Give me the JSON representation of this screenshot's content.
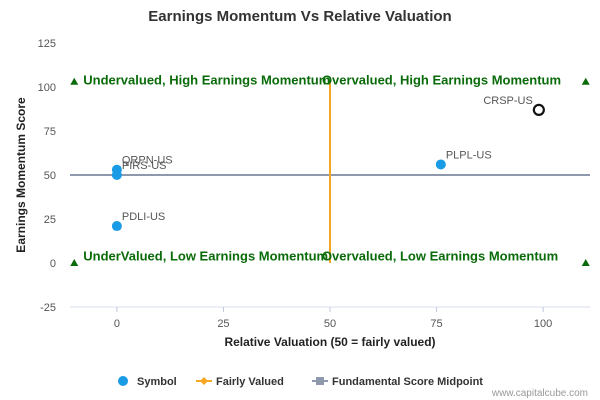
{
  "chart_data": {
    "type": "scatter",
    "title": "Earnings Momentum Vs Relative Valuation",
    "xlabel": "Relative Valuation (50 = fairly valued)",
    "ylabel": "Earnings Momentum Score",
    "xlim": [
      -11,
      111
    ],
    "ylim": [
      -25,
      125
    ],
    "x_ticks": [
      0,
      25,
      50,
      75,
      100
    ],
    "y_ticks": [
      -25,
      0,
      25,
      50,
      75,
      100,
      125
    ],
    "grid": false,
    "legend_position": "bottom",
    "points": [
      {
        "label": "QRPN-US",
        "x": 0,
        "y": 53,
        "highlight": false
      },
      {
        "label": "PIRS-US",
        "x": 0,
        "y": 50,
        "highlight": false
      },
      {
        "label": "PDLI-US",
        "x": 0,
        "y": 21,
        "highlight": false
      },
      {
        "label": "PLPL-US",
        "x": 76,
        "y": 56,
        "highlight": false
      },
      {
        "label": "CRSP-US",
        "x": 99,
        "y": 87,
        "highlight": true
      }
    ],
    "fairly_valued_x": 50,
    "fundamental_score_midpoint_y": 50,
    "quadrant_labels": [
      {
        "text": "Undervalued, High Earnings Momentum",
        "x": -10,
        "y": 103
      },
      {
        "text": "Overvalued, High Earnings Momentum",
        "x": 46,
        "y": 103
      },
      {
        "text": "UnderValued, Low Earnings Momentum",
        "x": -10,
        "y": 3
      },
      {
        "text": "Overvalued, Low Earnings Momentum",
        "x": 46,
        "y": 3
      }
    ],
    "corner_markers": [
      {
        "x": -10,
        "y": 103
      },
      {
        "x": 110,
        "y": 103
      },
      {
        "x": -10,
        "y": 0
      },
      {
        "x": 110,
        "y": 0
      }
    ],
    "legend": [
      {
        "label": "Symbol",
        "kind": "dot"
      },
      {
        "label": "Fairly Valued",
        "kind": "line-diamond"
      },
      {
        "label": "Fundamental Score Midpoint",
        "kind": "line-square"
      }
    ],
    "colors": {
      "symbol": "#1a9be6",
      "fairly_valued": "#f5a623",
      "midpoint": "#8e99ad",
      "quadrant_text": "#0a6b0a",
      "highlight_stroke": "#111111"
    }
  },
  "credit": "www.capitalcube.com"
}
